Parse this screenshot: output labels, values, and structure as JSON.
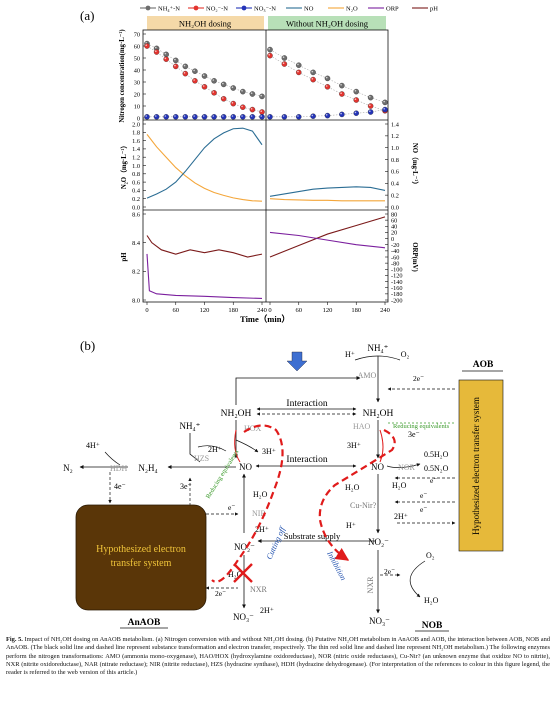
{
  "panel_a": {
    "label": "(a)",
    "legend": [
      {
        "name": "NH₄⁺-N",
        "color": "#6d6d6d"
      },
      {
        "name": "NO₂⁻-N",
        "color": "#e3342f"
      },
      {
        "name": "NO₃⁻-N",
        "color": "#2434b8"
      },
      {
        "name": "NO",
        "color": "#2b6d94"
      },
      {
        "name": "N₂O",
        "color": "#f4a63a"
      },
      {
        "name": "ORP",
        "color": "#7b1f9e"
      },
      {
        "name": "pH",
        "color": "#7b1a1a"
      }
    ],
    "header_left": "NH₂OH dosing",
    "header_right": "Without NH₂OH dosing",
    "header_left_color": "#f5d9a8",
    "header_right_color": "#b8e0b8",
    "xlabel": "Time（min）"
  },
  "chart_data": [
    {
      "type": "scatter",
      "panel": "nitrogen concentration",
      "ylabel": "Nitrogen concentration(mg·L⁻¹)",
      "ylim": [
        0,
        70
      ],
      "yticks": [
        0,
        10,
        20,
        30,
        40,
        50,
        60,
        70
      ],
      "series": [
        {
          "name": "NH₄⁺-N",
          "section": "left",
          "x": [
            0,
            20,
            40,
            60,
            80,
            100,
            120,
            140,
            160,
            180,
            200,
            220,
            240
          ],
          "y": [
            62,
            58,
            53,
            48,
            43,
            39,
            35,
            31,
            28,
            25,
            22,
            20,
            18
          ]
        },
        {
          "name": "NO₂⁻-N",
          "section": "left",
          "x": [
            0,
            20,
            40,
            60,
            80,
            100,
            120,
            140,
            160,
            180,
            200,
            220,
            240
          ],
          "y": [
            60,
            55,
            49,
            43,
            37,
            31,
            26,
            21,
            16,
            12,
            9,
            7,
            5
          ]
        },
        {
          "name": "NO₃⁻-N",
          "section": "left",
          "x": [
            0,
            20,
            40,
            60,
            80,
            100,
            120,
            140,
            160,
            180,
            200,
            220,
            240
          ],
          "y": [
            1,
            1,
            1,
            1,
            1,
            1,
            1,
            1,
            1,
            1,
            1,
            1,
            1
          ]
        },
        {
          "name": "NH₄⁺-N",
          "section": "right",
          "x": [
            0,
            30,
            60,
            90,
            120,
            150,
            180,
            210,
            240
          ],
          "y": [
            57,
            50,
            44,
            38,
            33,
            27,
            22,
            17,
            13
          ]
        },
        {
          "name": "NO₂⁻-N",
          "section": "right",
          "x": [
            0,
            30,
            60,
            90,
            120,
            150,
            180,
            210,
            240
          ],
          "y": [
            52,
            45,
            38,
            32,
            26,
            20,
            15,
            10,
            6
          ]
        },
        {
          "name": "NO₃⁻-N",
          "section": "right",
          "x": [
            0,
            30,
            60,
            90,
            120,
            150,
            180,
            210,
            240
          ],
          "y": [
            1,
            1,
            1,
            1.5,
            2,
            3,
            4,
            5,
            7
          ]
        }
      ]
    },
    {
      "type": "line",
      "panel": "N2O and NO",
      "ylabel": "N₂O（mg·L⁻¹）",
      "ylim": [
        0,
        2.0
      ],
      "yticks": [
        0,
        0.2,
        0.4,
        0.6,
        0.8,
        1.0,
        1.2,
        1.4,
        1.6,
        1.8,
        2.0
      ],
      "y2label": "NO（mg·L⁻¹）",
      "y2lim": [
        0,
        1.4
      ],
      "y2ticks": [
        0,
        0.2,
        0.4,
        0.6,
        0.8,
        1.0,
        1.2,
        1.4
      ],
      "series": [
        {
          "name": "N₂O",
          "section": "left",
          "x": [
            0,
            20,
            40,
            60,
            80,
            100,
            120,
            140,
            160,
            180,
            200,
            220,
            240
          ],
          "y": [
            1.75,
            1.45,
            1.2,
            0.95,
            0.75,
            0.58,
            0.45,
            0.35,
            0.28,
            0.22,
            0.18,
            0.15,
            0.14
          ]
        },
        {
          "name": "NO",
          "section": "left",
          "x": [
            0,
            20,
            40,
            60,
            80,
            100,
            120,
            140,
            160,
            180,
            200,
            220,
            240
          ],
          "y": [
            0.15,
            0.22,
            0.3,
            0.42,
            0.6,
            0.8,
            1.0,
            1.15,
            1.25,
            1.32,
            1.33,
            1.28,
            1.05
          ]
        },
        {
          "name": "N₂O",
          "section": "right",
          "x": [
            0,
            30,
            60,
            90,
            120,
            150,
            180,
            210,
            240
          ],
          "y": [
            0.2,
            0.18,
            0.17,
            0.16,
            0.16,
            0.15,
            0.15,
            0.15,
            0.15
          ]
        },
        {
          "name": "NO",
          "section": "right",
          "x": [
            0,
            30,
            60,
            90,
            120,
            150,
            180,
            210,
            240
          ],
          "y": [
            0.18,
            0.22,
            0.26,
            0.3,
            0.32,
            0.33,
            0.34,
            0.33,
            0.28
          ]
        }
      ]
    },
    {
      "type": "line",
      "panel": "pH and ORP",
      "ylabel": "pH",
      "ylim": [
        8.0,
        8.6
      ],
      "yticks": [
        8.0,
        8.2,
        8.4,
        8.6
      ],
      "y2label": "ORP(mV)",
      "y2lim": [
        -200,
        80
      ],
      "y2ticks": [
        -200,
        -180,
        -160,
        -140,
        -120,
        -100,
        -80,
        -60,
        -40,
        -20,
        0,
        20,
        40,
        60,
        80
      ],
      "series": [
        {
          "name": "pH",
          "section": "left",
          "x": [
            0,
            10,
            30,
            60,
            90,
            120,
            150,
            180,
            210,
            240
          ],
          "y": [
            8.45,
            8.4,
            8.35,
            8.32,
            8.35,
            8.33,
            8.35,
            8.33,
            8.3,
            8.32
          ]
        },
        {
          "name": "ORP",
          "section": "left",
          "x": [
            0,
            5,
            20,
            60,
            120,
            180,
            240
          ],
          "y": [
            -50,
            -170,
            -180,
            -185,
            -188,
            -192,
            -195
          ]
        },
        {
          "name": "pH",
          "section": "right",
          "x": [
            0,
            60,
            120,
            180,
            240
          ],
          "y": [
            8.3,
            8.38,
            8.46,
            8.52,
            8.58
          ]
        },
        {
          "name": "ORP",
          "section": "right",
          "x": [
            0,
            60,
            120,
            180,
            240
          ],
          "y": [
            20,
            10,
            -5,
            -20,
            -30
          ]
        }
      ]
    }
  ],
  "x_ticks": [
    "0",
    "60",
    "120",
    "180",
    "240"
  ],
  "panel_b": {
    "label": "(b)",
    "nodes": {
      "nh4_top": "NH₄⁺",
      "h_plus": "H⁺",
      "o2_top": "O₂",
      "amo": "AMO",
      "two_e": "2e⁻",
      "aob_title": "AOB",
      "nob_title": "NOB",
      "anaob_title": "AnAOB",
      "nh2oh_left": "NH₂OH",
      "nh2oh_right": "NH₂OH",
      "interaction_1": "Interaction",
      "interaction_2": "Interaction",
      "hox": "HOX",
      "hao": "HAO",
      "three_h_left": "3H⁺",
      "three_h_right": "3H⁺",
      "three_e_right": "3e⁻",
      "reducing_eq_right": "Reducing equivalents",
      "reducing_eq_left": "Reducing equivalents",
      "no_left": "NO",
      "no_right": "NO",
      "nor": "NOR",
      "half_h2o": "0.5H₂O",
      "half_n2o": "0.5N₂O",
      "e_minus": "e⁻",
      "cu_nir": "Cu-Nir?",
      "nir": "NIR",
      "h2o": "H₂O",
      "two_h_plus": "2H⁺",
      "h_plus_mid": "H⁺",
      "substrate_supply": "Substrate supply",
      "inhibition": "Inhibition",
      "cutting_off": "Cutting off",
      "no2_left": "NO₂⁻",
      "no2_right": "NO₂⁻",
      "no3_left": "NO₃⁻",
      "no3_right": "NO₃⁻",
      "nxr": "NXR",
      "hzs": "HZS",
      "hdh": "HDH",
      "n2": "N₂",
      "n2h4": "N₂H₄",
      "four_h": "4H⁺",
      "four_e": "4e⁻",
      "nh4_left": "NH₄⁺",
      "three_e_left": "3e⁻",
      "o2_right": "O₂",
      "h2o_right": "H₂O",
      "two_e_right": "2e⁻",
      "two_e_bottom": "2e⁻",
      "one_e": "e⁻",
      "etc_left": "Hypothesized electron transfer system",
      "etc_right": "Hypothesized electron transfer system"
    },
    "colors": {
      "etc_left_fill": "#5a3608",
      "etc_left_text": "#f0c43a",
      "etc_right_fill": "#e6b93a",
      "red_dash": "#e01b1b",
      "arrow_blue": "#3e6fd1"
    }
  },
  "caption": {
    "fig": "Fig. 5.",
    "text": "Impact of NH₂OH dosing on AnAOB metabolism. (a) Nitrogen conversion with and without NH₂OH dosing. (b) Putative NH₂OH metabolism in AnAOB and AOB, the interaction between AOB, NOB and AnAOB. (The black solid line and dashed line represent substance transformation and electron transfer, respectively. The thin red solid line and dashed line represent NH₂OH metabolism.) The following enzymes perform the nitrogen transformations: AMO (ammonia mono-oxygenase), HAO/HOX (hydroxylamine oxidoreductase), NOR (nitric oxide reductases), Cu-Nir? (an unknown enzyme that oxidize NO to nitrite), NXR (nitrite oxidoreductase), NAR (nitrate reductase); NIR (nitrite reductase), HZS (hydrazine synthase), HDH (hydrazine dehydrogenase). (For interpretation of the references to colour in this figure legend, the reader is referred to the web version of this article.)"
  }
}
